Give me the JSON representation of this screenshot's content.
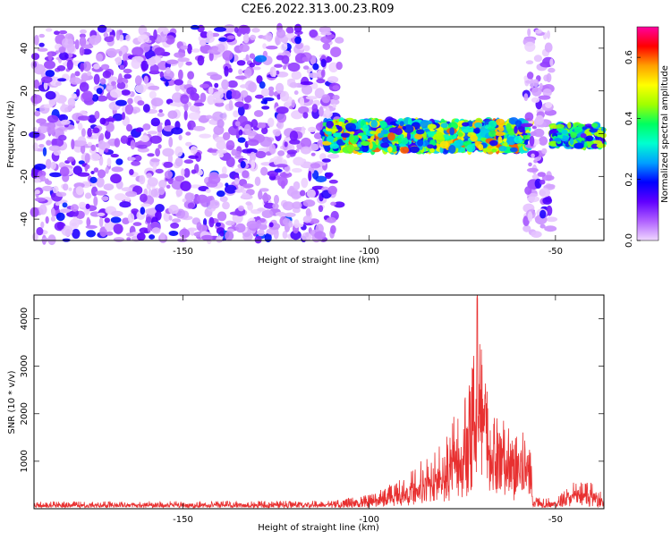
{
  "figure": {
    "title": "C2E6.2022.313.00.23.R09"
  },
  "chart_data": [
    {
      "type": "heatmap",
      "title": "C2E6.2022.313.00.23.R09",
      "xlabel": "Height of straight line (km)",
      "ylabel": "Frequency (Hz)",
      "xlim": [
        -190,
        -37
      ],
      "ylim": [
        -50,
        50
      ],
      "xticks": [
        -150,
        -100,
        -50
      ],
      "yticks": [
        -40,
        -20,
        0,
        20,
        40
      ],
      "colorbar": {
        "label": "Normalized spectral amplitude",
        "range": [
          0,
          0.7
        ],
        "ticks": [
          "0.0",
          "0.2",
          "0.4",
          "0.6"
        ],
        "colormap": [
          "#f0d8ff",
          "#b060ff",
          "#6000ff",
          "#0000ff",
          "#00a0ff",
          "#00ffd0",
          "#00ff60",
          "#a0ff00",
          "#ffff00",
          "#ffa000",
          "#ff0000",
          "#ff00a0"
        ]
      },
      "features": [
        {
          "name": "noise",
          "x_range": [
            -190,
            -108
          ],
          "y_range": [
            -50,
            50
          ],
          "level": 0.08
        },
        {
          "name": "signal band",
          "x_range": [
            -112,
            -57
          ],
          "y_range": [
            -8,
            6
          ],
          "level": 0.35,
          "peak": 0.6
        },
        {
          "name": "noise strip",
          "x_range": [
            -58,
            -51
          ],
          "y_range": [
            -50,
            50
          ],
          "level": 0.06
        },
        {
          "name": "signal band",
          "x_range": [
            -51,
            -37
          ],
          "y_range": [
            -6,
            4
          ],
          "level": 0.3
        }
      ]
    },
    {
      "type": "line",
      "xlabel": "Height of straight line (km)",
      "ylabel": "SNR (10 * v/v)",
      "xlim": [
        -190,
        -37
      ],
      "ylim": [
        0,
        4500
      ],
      "xticks": [
        -150,
        -100,
        -50
      ],
      "yticks": [
        1000,
        2000,
        3000,
        4000
      ],
      "color": "#e83030",
      "envelope": [
        {
          "x": -190,
          "y": 150
        },
        {
          "x": -150,
          "y": 160
        },
        {
          "x": -110,
          "y": 170
        },
        {
          "x": -100,
          "y": 300
        },
        {
          "x": -90,
          "y": 700
        },
        {
          "x": -85,
          "y": 1100
        },
        {
          "x": -80,
          "y": 1500
        },
        {
          "x": -76,
          "y": 2400
        },
        {
          "x": -73,
          "y": 2700
        },
        {
          "x": -71,
          "y": 4500
        },
        {
          "x": -69,
          "y": 2800
        },
        {
          "x": -65,
          "y": 2000
        },
        {
          "x": -60,
          "y": 1500
        },
        {
          "x": -57,
          "y": 1800
        },
        {
          "x": -56,
          "y": 300
        },
        {
          "x": -50,
          "y": 200
        },
        {
          "x": -45,
          "y": 600
        },
        {
          "x": -40,
          "y": 550
        },
        {
          "x": -37,
          "y": 300
        }
      ]
    }
  ]
}
